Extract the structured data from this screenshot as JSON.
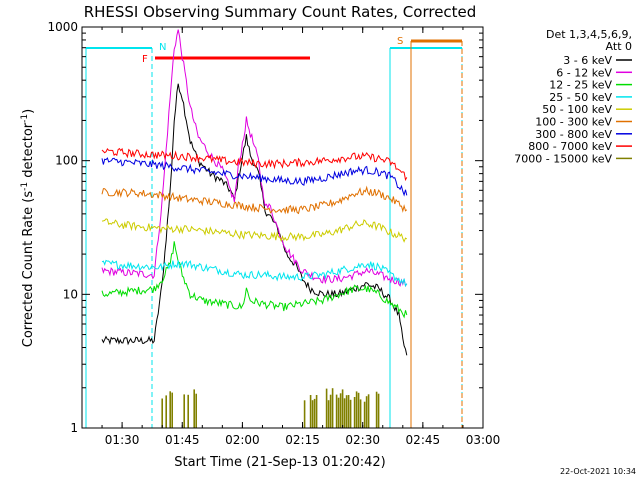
{
  "chart_data": {
    "type": "line",
    "title": "RHESSI Observing Summary Count Rates, Corrected",
    "xlabel": "Start Time (21-Sep-13 01:20:42)",
    "ylabel": "Corrected Count Rate (s",
    "ylabel_sup1": "-1",
    "ylabel_mid": " detector",
    "ylabel_sup2": "-1",
    "ylabel_end": ")",
    "footer_timestamp": "22-Oct-2021 10:34",
    "y_scale": "log",
    "ylim": [
      1,
      1000
    ],
    "xlim": [
      "01:20",
      "03:00"
    ],
    "x_ticks": [
      "01:30",
      "01:45",
      "02:00",
      "02:15",
      "02:30",
      "02:45",
      "03:00"
    ],
    "y_ticks": [
      "1",
      "10",
      "100",
      "1000"
    ],
    "legend": {
      "header1": "Det 1,3,4,5,6,9,",
      "header2": "Att 0",
      "position": "right"
    },
    "series": [
      {
        "name": "3 - 6 keV",
        "color": "#000000",
        "points": [
          [
            "01:25",
            4.5
          ],
          [
            "01:38",
            4.5
          ],
          [
            "01:40",
            12
          ],
          [
            "01:42",
            60
          ],
          [
            "01:43",
            200
          ],
          [
            "01:44",
            380
          ],
          [
            "01:45",
            300
          ],
          [
            "01:47",
            140
          ],
          [
            "01:49",
            100
          ],
          [
            "01:52",
            80
          ],
          [
            "01:55",
            70
          ],
          [
            "01:57",
            60
          ],
          [
            "01:58",
            50
          ],
          [
            "01:59",
            75
          ],
          [
            "02:01",
            150
          ],
          [
            "02:02",
            110
          ],
          [
            "02:04",
            80
          ],
          [
            "02:05",
            55
          ],
          [
            "02:06",
            40
          ],
          [
            "02:07",
            38
          ],
          [
            "02:09",
            30
          ],
          [
            "02:11",
            20
          ],
          [
            "02:13",
            17
          ],
          [
            "02:15",
            13
          ],
          [
            "02:17",
            11
          ],
          [
            "02:20",
            10
          ],
          [
            "02:24",
            10
          ],
          [
            "02:28",
            11
          ],
          [
            "02:31",
            12
          ],
          [
            "02:34",
            11
          ],
          [
            "02:37",
            9
          ],
          [
            "02:39",
            7
          ],
          [
            "02:40",
            4.5
          ],
          [
            "02:41",
            3.5
          ]
        ]
      },
      {
        "name": "6 - 12 keV",
        "color": "#e000e0",
        "points": [
          [
            "01:25",
            15
          ],
          [
            "01:38",
            14
          ],
          [
            "01:40",
            50
          ],
          [
            "01:42",
            300
          ],
          [
            "01:43",
            700
          ],
          [
            "01:44",
            950
          ],
          [
            "01:45",
            600
          ],
          [
            "01:47",
            250
          ],
          [
            "01:49",
            150
          ],
          [
            "01:52",
            110
          ],
          [
            "01:55",
            85
          ],
          [
            "01:57",
            60
          ],
          [
            "01:58",
            50
          ],
          [
            "01:59",
            90
          ],
          [
            "02:01",
            200
          ],
          [
            "02:02",
            160
          ],
          [
            "02:04",
            100
          ],
          [
            "02:05",
            60
          ],
          [
            "02:06",
            45
          ],
          [
            "02:07",
            45
          ],
          [
            "02:09",
            30
          ],
          [
            "02:11",
            22
          ],
          [
            "02:13",
            18
          ],
          [
            "02:15",
            15
          ],
          [
            "02:17",
            14
          ],
          [
            "02:20",
            13
          ],
          [
            "02:24",
            13
          ],
          [
            "02:28",
            14
          ],
          [
            "02:31",
            15
          ],
          [
            "02:34",
            14
          ],
          [
            "02:37",
            13
          ],
          [
            "02:41",
            12
          ]
        ]
      },
      {
        "name": "12 - 25 keV",
        "color": "#00dd00",
        "points": [
          [
            "01:25",
            10
          ],
          [
            "01:38",
            11
          ],
          [
            "01:40",
            13
          ],
          [
            "01:42",
            17
          ],
          [
            "01:43",
            24
          ],
          [
            "01:44",
            18
          ],
          [
            "01:45",
            14
          ],
          [
            "01:47",
            10
          ],
          [
            "01:50",
            9
          ],
          [
            "01:55",
            8.5
          ],
          [
            "02:00",
            8
          ],
          [
            "02:01",
            11
          ],
          [
            "02:02",
            9
          ],
          [
            "02:05",
            8.5
          ],
          [
            "02:10",
            8
          ],
          [
            "02:15",
            8.5
          ],
          [
            "02:20",
            9
          ],
          [
            "02:24",
            10
          ],
          [
            "02:28",
            11
          ],
          [
            "02:31",
            11
          ],
          [
            "02:34",
            10
          ],
          [
            "02:37",
            8.5
          ],
          [
            "02:41",
            7
          ]
        ]
      },
      {
        "name": "25 - 50 keV",
        "color": "#00e5ee",
        "points": [
          [
            "01:25",
            17
          ],
          [
            "01:38",
            16
          ],
          [
            "01:40",
            16
          ],
          [
            "01:43",
            17
          ],
          [
            "01:46",
            17
          ],
          [
            "01:50",
            16
          ],
          [
            "01:55",
            15
          ],
          [
            "02:00",
            14
          ],
          [
            "02:05",
            14
          ],
          [
            "02:10",
            13.5
          ],
          [
            "02:15",
            13.5
          ],
          [
            "02:20",
            14
          ],
          [
            "02:24",
            15
          ],
          [
            "02:28",
            16
          ],
          [
            "02:31",
            17
          ],
          [
            "02:34",
            16
          ],
          [
            "02:37",
            14
          ],
          [
            "02:41",
            12
          ]
        ]
      },
      {
        "name": "50 - 100 keV",
        "color": "#cccc00",
        "points": [
          [
            "01:25",
            35
          ],
          [
            "01:30",
            33
          ],
          [
            "01:35",
            32
          ],
          [
            "01:40",
            31
          ],
          [
            "01:45",
            31
          ],
          [
            "01:50",
            30
          ],
          [
            "01:55",
            29
          ],
          [
            "02:00",
            28
          ],
          [
            "02:05",
            27.5
          ],
          [
            "02:10",
            27
          ],
          [
            "02:15",
            27
          ],
          [
            "02:20",
            28
          ],
          [
            "02:24",
            30
          ],
          [
            "02:28",
            33
          ],
          [
            "02:31",
            34
          ],
          [
            "02:34",
            32
          ],
          [
            "02:37",
            29
          ],
          [
            "02:41",
            26
          ]
        ]
      },
      {
        "name": "100 - 300 keV",
        "color": "#e07000",
        "points": [
          [
            "01:25",
            58
          ],
          [
            "01:30",
            58
          ],
          [
            "01:35",
            57
          ],
          [
            "01:40",
            55
          ],
          [
            "01:45",
            52
          ],
          [
            "01:50",
            50
          ],
          [
            "01:55",
            48
          ],
          [
            "02:00",
            46
          ],
          [
            "02:05",
            44
          ],
          [
            "02:10",
            43
          ],
          [
            "02:15",
            43
          ],
          [
            "02:20",
            46
          ],
          [
            "02:24",
            50
          ],
          [
            "02:28",
            57
          ],
          [
            "02:31",
            59
          ],
          [
            "02:34",
            57
          ],
          [
            "02:37",
            52
          ],
          [
            "02:41",
            43
          ]
        ]
      },
      {
        "name": "300 - 800 keV",
        "color": "#0000e0",
        "points": [
          [
            "01:25",
            100
          ],
          [
            "01:30",
            98
          ],
          [
            "01:35",
            95
          ],
          [
            "01:40",
            92
          ],
          [
            "01:45",
            88
          ],
          [
            "01:50",
            84
          ],
          [
            "01:55",
            80
          ],
          [
            "02:00",
            77
          ],
          [
            "02:05",
            74
          ],
          [
            "02:10",
            71
          ],
          [
            "02:15",
            70
          ],
          [
            "02:20",
            74
          ],
          [
            "02:24",
            79
          ],
          [
            "02:28",
            84
          ],
          [
            "02:31",
            85
          ],
          [
            "02:34",
            82
          ],
          [
            "02:37",
            76
          ],
          [
            "02:41",
            55
          ]
        ]
      },
      {
        "name": "800 - 7000 keV",
        "color": "#ff0000",
        "points": [
          [
            "01:25",
            118
          ],
          [
            "01:30",
            115
          ],
          [
            "01:35",
            112
          ],
          [
            "01:40",
            110
          ],
          [
            "01:45",
            108
          ],
          [
            "01:50",
            105
          ],
          [
            "01:55",
            100
          ],
          [
            "02:00",
            97
          ],
          [
            "02:05",
            95
          ],
          [
            "02:10",
            95
          ],
          [
            "02:15",
            97
          ],
          [
            "02:20",
            100
          ],
          [
            "02:24",
            104
          ],
          [
            "02:28",
            107
          ],
          [
            "02:31",
            107
          ],
          [
            "02:34",
            104
          ],
          [
            "02:37",
            97
          ],
          [
            "02:41",
            75
          ]
        ]
      },
      {
        "name": "7000 - 15000 keV",
        "color": "#808000",
        "bursts": [
          [
            "01:40",
            "01:49"
          ],
          [
            "02:15",
            "02:35"
          ]
        ],
        "points": []
      }
    ],
    "overlays": {
      "night_color": "#00e5ee",
      "night_label": "N",
      "flare_color": "#ff0000",
      "flare_label": "F",
      "saa_color": "#e07000",
      "saa_label": "S"
    }
  }
}
